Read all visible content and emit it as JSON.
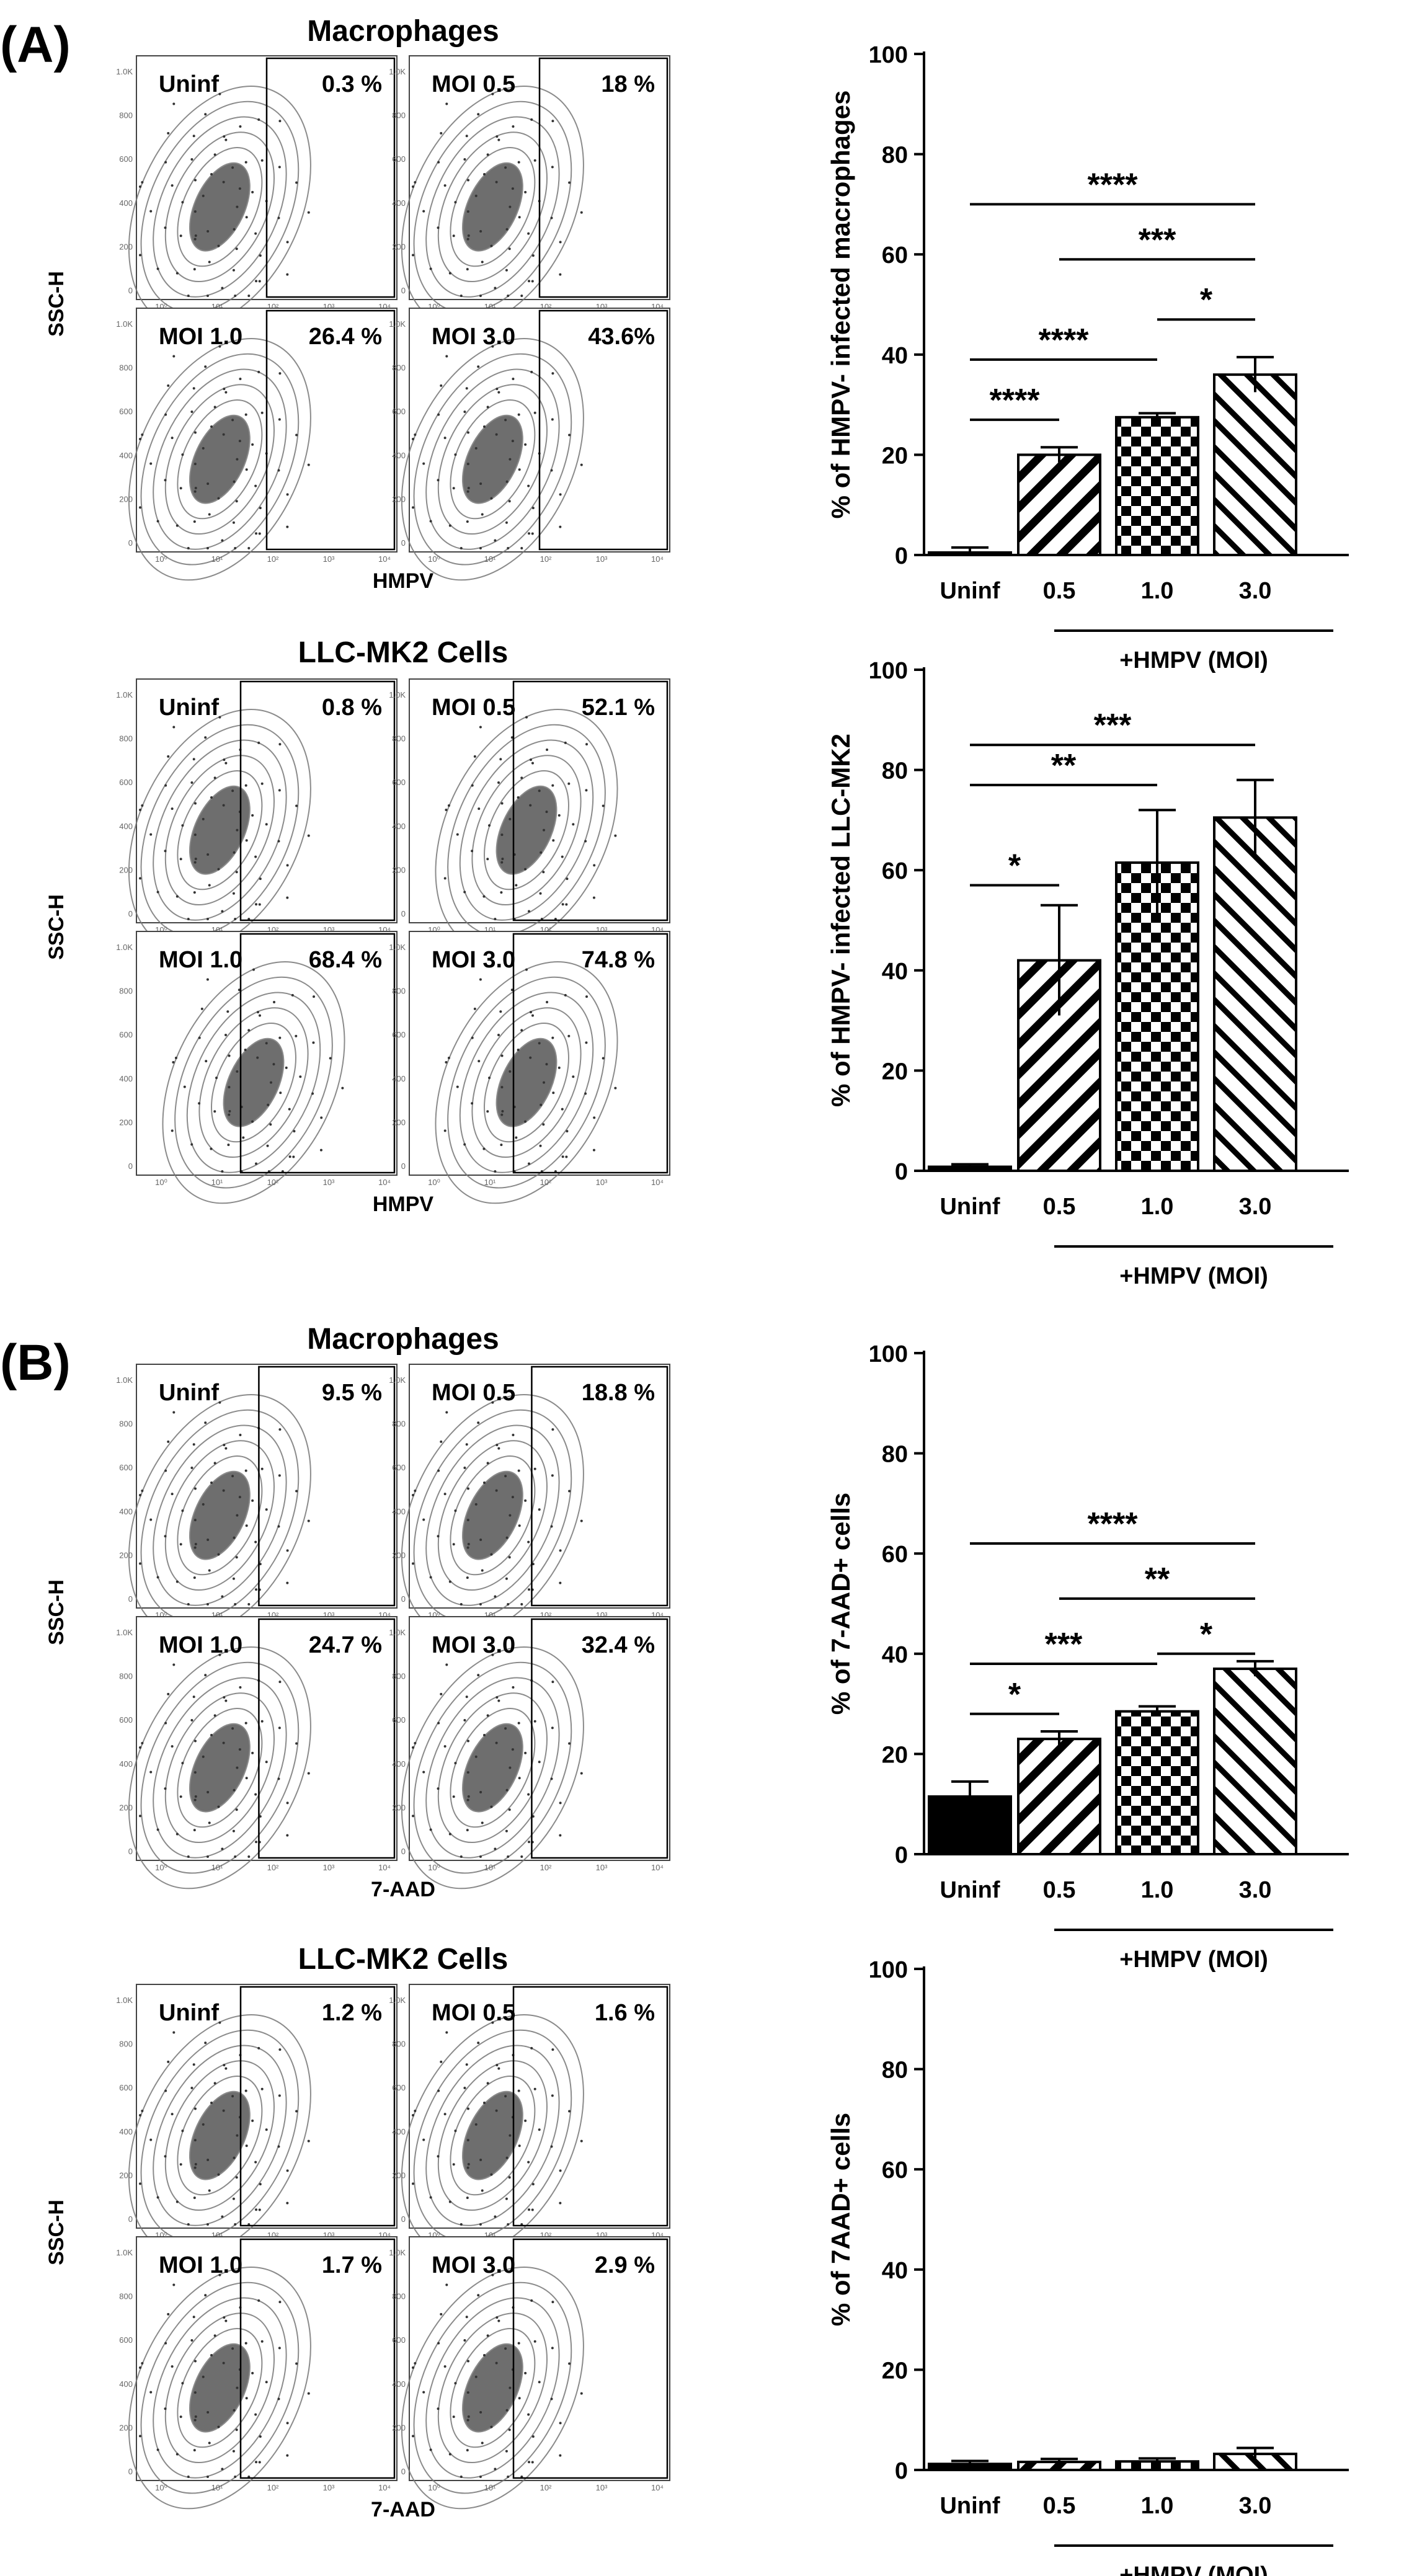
{
  "panels": {
    "A": {
      "label": "(A)"
    },
    "B": {
      "label": "(B)"
    }
  },
  "flow_data": [
    {
      "title": "Macrophages",
      "ylabel": "SSC-H",
      "xlabel": "HMPV",
      "quadrants": [
        {
          "label": "Uninf",
          "value": "0.3 %"
        },
        {
          "label": "MOI 0.5",
          "value": "18 %"
        },
        {
          "label": "MOI 1.0",
          "value": "26.4 %"
        },
        {
          "label": "MOI 3.0",
          "value": "43.6%"
        }
      ]
    },
    {
      "title": "LLC-MK2 Cells",
      "ylabel": "SSC-H",
      "xlabel": "HMPV",
      "quadrants": [
        {
          "label": "Uninf",
          "value": "0.8 %"
        },
        {
          "label": "MOI 0.5",
          "value": "52.1 %"
        },
        {
          "label": "MOI 1.0",
          "value": "68.4 %"
        },
        {
          "label": "MOI 3.0",
          "value": "74.8 %"
        }
      ]
    },
    {
      "title": "Macrophages",
      "ylabel": "SSC-H",
      "xlabel": "7-AAD",
      "quadrants": [
        {
          "label": "Uninf",
          "value": "9.5 %"
        },
        {
          "label": "MOI 0.5",
          "value": "18.8 %"
        },
        {
          "label": "MOI 1.0",
          "value": "24.7 %"
        },
        {
          "label": "MOI 3.0",
          "value": "32.4 %"
        }
      ]
    },
    {
      "title": "LLC-MK2 Cells",
      "ylabel": "SSC-H",
      "xlabel": "7-AAD",
      "quadrants": [
        {
          "label": "Uninf",
          "value": "1.2 %"
        },
        {
          "label": "MOI 0.5",
          "value": "1.6 %"
        },
        {
          "label": "MOI 1.0",
          "value": "1.7 %"
        },
        {
          "label": "MOI 3.0",
          "value": "2.9 %"
        }
      ]
    }
  ],
  "chart_data": [
    {
      "type": "bar",
      "ylabel": "% of HMPV- infected macrophages",
      "categories": [
        "Uninf",
        "0.5",
        "1.0",
        "3.0"
      ],
      "values": [
        0.5,
        20,
        27.5,
        36
      ],
      "errors": [
        1,
        1.5,
        0.8,
        3.5
      ],
      "ylim": [
        0,
        100
      ],
      "yticks": [
        "0",
        "20",
        "40",
        "60",
        "80",
        "100"
      ],
      "bracket_label": "+HMPV (MOI)",
      "significance": [
        {
          "from": 0,
          "to": 3,
          "y": 70,
          "label": "****"
        },
        {
          "from": 1,
          "to": 3,
          "y": 59,
          "label": "***"
        },
        {
          "from": 2,
          "to": 3,
          "y": 47,
          "label": "*"
        },
        {
          "from": 0,
          "to": 2,
          "y": 39,
          "label": "****"
        },
        {
          "from": 0,
          "to": 1,
          "y": 27,
          "label": "****"
        }
      ]
    },
    {
      "type": "bar",
      "ylabel": "% of HMPV- infected LLC-MK2",
      "categories": [
        "Uninf",
        "0.5",
        "1.0",
        "3.0"
      ],
      "values": [
        0.8,
        42,
        61.5,
        70.5
      ],
      "errors": [
        0.5,
        11,
        10.5,
        7.5
      ],
      "ylim": [
        0,
        100
      ],
      "yticks": [
        "0",
        "20",
        "40",
        "60",
        "80",
        "100"
      ],
      "bracket_label": "+HMPV (MOI)",
      "significance": [
        {
          "from": 0,
          "to": 3,
          "y": 85,
          "label": "***"
        },
        {
          "from": 0,
          "to": 2,
          "y": 77,
          "label": "**"
        },
        {
          "from": 0,
          "to": 1,
          "y": 57,
          "label": "*"
        }
      ]
    },
    {
      "type": "bar",
      "ylabel": "% of 7-AAD+ cells",
      "categories": [
        "Uninf",
        "0.5",
        "1.0",
        "3.0"
      ],
      "values": [
        11.5,
        23,
        28.5,
        37
      ],
      "errors": [
        3,
        1.5,
        1,
        1.5
      ],
      "ylim": [
        0,
        100
      ],
      "yticks": [
        "0",
        "20",
        "40",
        "60",
        "80",
        "100"
      ],
      "bracket_label": "+HMPV (MOI)",
      "significance": [
        {
          "from": 0,
          "to": 3,
          "y": 62,
          "label": "****"
        },
        {
          "from": 1,
          "to": 3,
          "y": 51,
          "label": "**"
        },
        {
          "from": 2,
          "to": 3,
          "y": 40,
          "label": "*"
        },
        {
          "from": 0,
          "to": 2,
          "y": 38,
          "label": "***"
        },
        {
          "from": 0,
          "to": 1,
          "y": 28,
          "label": "*"
        }
      ]
    },
    {
      "type": "bar",
      "ylabel": "% of 7AAD+ cells",
      "categories": [
        "Uninf",
        "0.5",
        "1.0",
        "3.0"
      ],
      "values": [
        1.2,
        1.6,
        1.7,
        3.2
      ],
      "errors": [
        0.6,
        0.6,
        0.6,
        1.2
      ],
      "ylim": [
        0,
        100
      ],
      "yticks": [
        "0",
        "20",
        "40",
        "60",
        "80",
        "100"
      ],
      "bracket_label": "+HMPV (MOI)",
      "significance": []
    }
  ]
}
